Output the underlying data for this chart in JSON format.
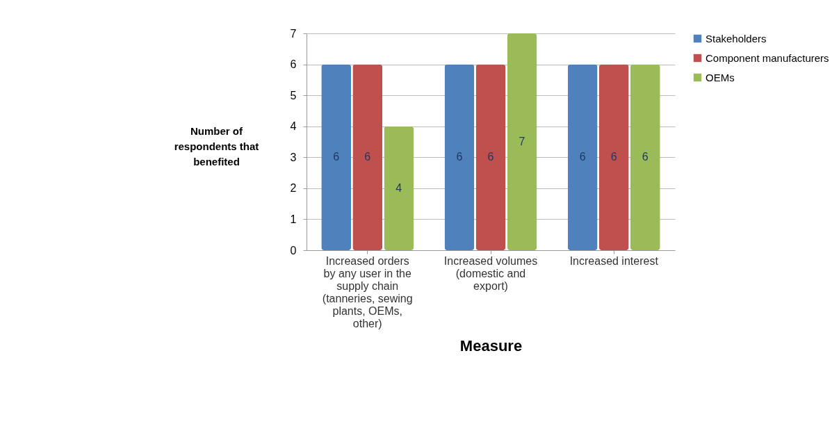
{
  "chart_data": {
    "type": "bar",
    "xlabel": "Measure",
    "ylabel": "Number of respondents that benefited",
    "categories": [
      "Increased orders by any user in the supply chain (tanneries, sewing plants, OEMs, other)",
      "Increased volumes (domestic and export)",
      "Increased interest"
    ],
    "series": [
      {
        "name": "Stakeholders",
        "color": "#4f81bd",
        "values": [
          6,
          6,
          6
        ]
      },
      {
        "name": "Component manufacturers",
        "color": "#c0504d",
        "values": [
          6,
          6,
          6
        ]
      },
      {
        "name": "OEMs",
        "color": "#9bbb59",
        "values": [
          4,
          7,
          6
        ]
      }
    ],
    "ylim": [
      0,
      7
    ],
    "yticks": [
      0,
      1,
      2,
      3,
      4,
      5,
      6,
      7
    ],
    "grid": "y",
    "legend": "right",
    "data_labels": true
  }
}
